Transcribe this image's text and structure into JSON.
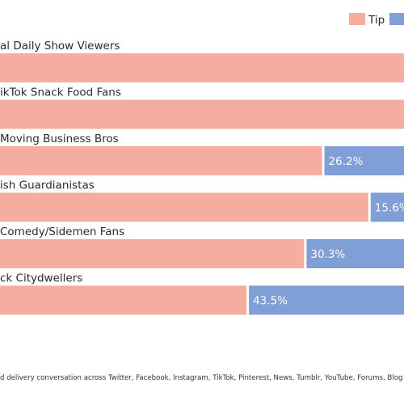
{
  "chart_data": {
    "type": "bar",
    "orientation": "horizontal",
    "stacked": true,
    "percent_scale": true,
    "legend": {
      "position": "top-right",
      "entries": [
        {
          "label": "Tip",
          "color": "#f5ada0"
        },
        {
          "label": "",
          "color": "#7f9fd6"
        }
      ]
    },
    "colors": {
      "tip": "#f5ada0",
      "other": "#7f9fd6"
    },
    "categories": [
      {
        "label": "al Daily Show Viewers",
        "tip": 100,
        "other": 0,
        "other_label": ""
      },
      {
        "label": "ikTok Snack Food Fans",
        "tip": 100,
        "other": 0,
        "other_label": ""
      },
      {
        "label": "Moving Business Bros",
        "tip": 73.8,
        "other": 26.2,
        "other_label": "26.2%"
      },
      {
        "label": "ish Guardianistas",
        "tip": 84.4,
        "other": 15.6,
        "other_label": "15.6%"
      },
      {
        "label": "Comedy/Sidemen Fans",
        "tip": 69.7,
        "other": 30.3,
        "other_label": "30.3%"
      },
      {
        "label": "ck Citydwellers",
        "tip": 56.5,
        "other": 43.5,
        "other_label": "43.5%"
      }
    ],
    "footnote": "d delivery conversation across Twitter, Facebook, Instagram, TikTok, Pinterest, News, Tumblr, YouTube, Forums, Blog and m"
  }
}
